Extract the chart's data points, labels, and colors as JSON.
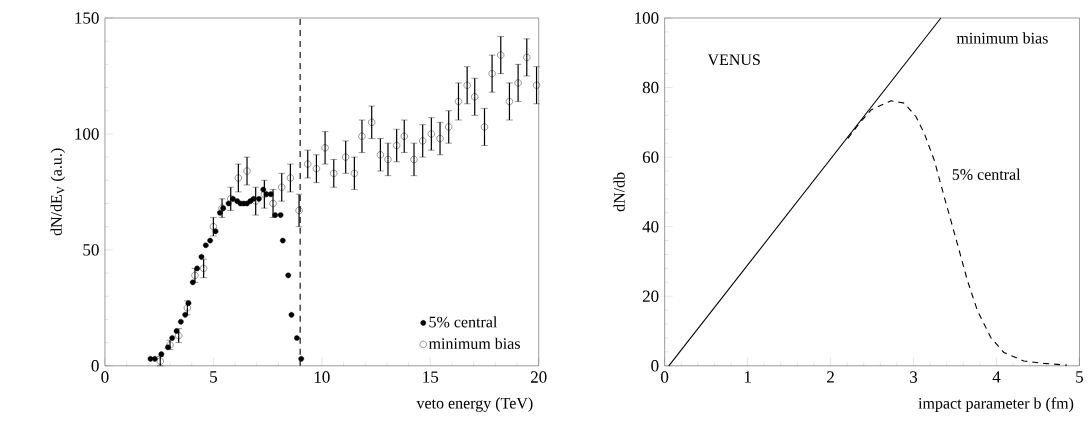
{
  "chart_data": [
    {
      "type": "scatter",
      "xlabel": "veto energy (TeV)",
      "ylabel": "dN/dE$_{V}$ (a.u.)",
      "xlim": [
        0,
        20
      ],
      "ylim": [
        0,
        150
      ],
      "xticks": [
        0,
        5,
        10,
        15,
        20
      ],
      "yticks": [
        0,
        50,
        100,
        150
      ],
      "legend": "bottom right",
      "grid": false,
      "ref_lines": [
        {
          "axis": "x",
          "value": 9.0,
          "line_style": "dashed",
          "color": "#000000"
        }
      ],
      "series": [
        {
          "name": "5% central",
          "color": "#000000",
          "marker": "circle",
          "x": [
            2.1,
            2.3,
            2.6,
            2.9,
            3.1,
            3.3,
            3.5,
            3.7,
            3.85,
            4.05,
            4.25,
            4.45,
            4.65,
            4.85,
            5.1,
            5.3,
            5.45,
            5.7,
            5.9,
            6.1,
            6.25,
            6.4,
            6.55,
            6.7,
            6.85,
            7.1,
            7.3,
            7.45,
            7.65,
            7.85,
            8.1,
            8.2,
            8.45,
            8.6,
            8.85,
            9.05
          ],
          "values": [
            3,
            3,
            5,
            8,
            12,
            15,
            19,
            22,
            27,
            36,
            42,
            47,
            52,
            54,
            58,
            66,
            68,
            70,
            72,
            71,
            70,
            70,
            70,
            71,
            72,
            72,
            76,
            74,
            74,
            65,
            65,
            54,
            39,
            22,
            12,
            3
          ]
        },
        {
          "name": "minimum bias",
          "color": "#000000",
          "marker": "open circle",
          "x": [
            2.55,
            3.0,
            3.4,
            3.8,
            4.15,
            4.55,
            5.0,
            5.4,
            5.8,
            6.15,
            6.55,
            6.95,
            7.35,
            7.75,
            8.15,
            8.55,
            8.95,
            9.35,
            9.75,
            10.15,
            10.55,
            11.1,
            11.5,
            11.85,
            12.3,
            12.7,
            13.05,
            13.45,
            13.8,
            14.25,
            14.65,
            15.05,
            15.45,
            15.85,
            16.3,
            16.7,
            17.05,
            17.5,
            17.85,
            18.25,
            18.65,
            19.05,
            19.45,
            19.9
          ],
          "values": [
            2,
            9,
            13,
            25,
            39,
            42,
            60,
            68,
            72,
            81,
            84,
            71,
            74,
            70,
            77,
            81,
            67,
            87,
            85,
            94,
            83,
            90,
            83,
            99,
            105,
            91,
            89,
            95,
            99,
            89,
            97,
            100,
            98,
            103,
            114,
            121,
            116,
            103,
            126,
            134,
            114,
            122,
            133,
            121
          ],
          "errors": [
            2,
            2,
            3,
            3,
            3,
            4,
            4,
            4,
            5,
            6,
            6,
            6,
            6,
            6,
            6,
            6,
            7,
            6,
            6,
            7,
            6,
            7,
            7,
            7,
            7,
            7,
            7,
            7,
            7,
            7,
            7,
            7,
            7,
            7,
            8,
            8,
            8,
            8,
            8,
            8,
            8,
            8,
            8,
            8
          ]
        }
      ]
    },
    {
      "type": "line",
      "xlabel": "impact parameter b (fm)",
      "ylabel": "dN/db",
      "xlim": [
        0,
        5
      ],
      "ylim": [
        0,
        100
      ],
      "xticks": [
        0,
        1,
        2,
        3,
        4,
        5
      ],
      "yticks": [
        0,
        20,
        40,
        60,
        80,
        100
      ],
      "legend": false,
      "grid": false,
      "annotations": [
        "VENUS"
      ],
      "series": [
        {
          "name": "minimum bias",
          "color": "#000000",
          "line_style": "solid",
          "x": [
            0.05,
            3.33
          ],
          "values": [
            0,
            100
          ]
        },
        {
          "name": "5% central",
          "color": "#000000",
          "line_style": "dashed",
          "x": [
            2.21,
            2.33,
            2.49,
            2.73,
            2.89,
            3.03,
            3.13,
            3.25,
            3.37,
            3.45,
            3.55,
            3.65,
            3.77,
            3.93,
            4.09,
            4.33,
            4.57,
            4.85
          ],
          "values": [
            65.4,
            69.2,
            73.6,
            76.2,
            75.5,
            71.6,
            66.8,
            59.1,
            48.6,
            41.8,
            33.2,
            24.5,
            15.9,
            8.2,
            3.8,
            1.4,
            0.7,
            0.2
          ]
        }
      ]
    }
  ]
}
